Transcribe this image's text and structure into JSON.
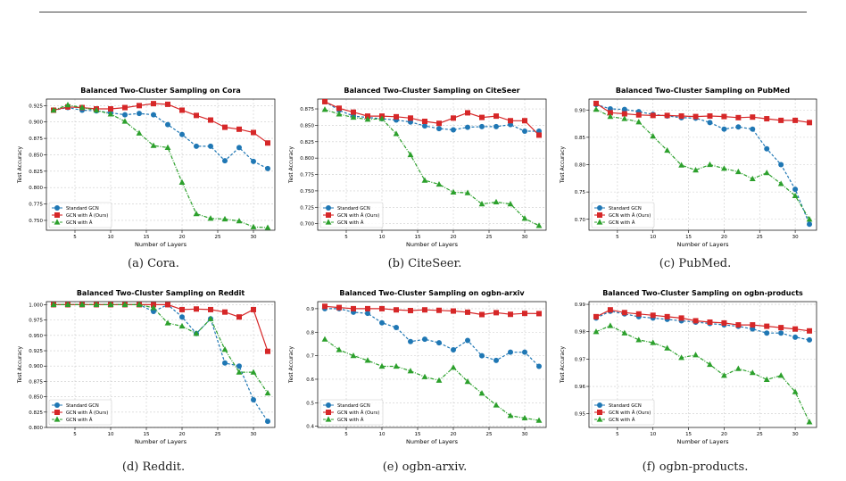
{
  "colors": {
    "standard": "#1f77b4",
    "ours": "#d62728",
    "ahat": "#2ca02c",
    "grid": "#cccccc"
  },
  "captions": [
    "(a) Cora.",
    "(b) CiteSeer.",
    "(c) PubMed.",
    "(d) Reddit.",
    "(e) ogbn-arxiv.",
    "(f) ogbn-products."
  ],
  "chart_data": [
    {
      "type": "line",
      "title": "Balanced Two-Cluster Sampling on Cora",
      "xlabel": "Number of Layers",
      "ylabel": "Test Accuracy",
      "xlim": [
        1,
        33
      ],
      "ylim": [
        0.735,
        0.935
      ],
      "xticks": [
        5,
        10,
        15,
        20,
        25,
        30
      ],
      "yticks": [
        0.75,
        0.775,
        0.8,
        0.825,
        0.85,
        0.875,
        0.9,
        0.925
      ],
      "ytick_labels": [
        "0.750",
        "0.775",
        "0.800",
        "0.825",
        "0.850",
        "0.875",
        "0.900",
        "0.925"
      ],
      "legend_loc": "lower-left",
      "grid": true,
      "x": [
        2,
        4,
        6,
        8,
        10,
        12,
        14,
        16,
        18,
        20,
        22,
        24,
        26,
        28,
        30,
        32
      ],
      "series": [
        {
          "name": "Standard GCN",
          "key": "standard",
          "marker": "circle",
          "dash": true,
          "values": [
            0.918,
            0.922,
            0.918,
            0.917,
            0.914,
            0.911,
            0.913,
            0.911,
            0.896,
            0.881,
            0.863,
            0.863,
            0.841,
            0.861,
            0.84,
            0.829
          ]
        },
        {
          "name": "GCN with Â (Ours)",
          "key": "ours",
          "marker": "square",
          "dash": false,
          "values": [
            0.918,
            0.923,
            0.922,
            0.92,
            0.92,
            0.922,
            0.925,
            0.928,
            0.927,
            0.918,
            0.91,
            0.903,
            0.892,
            0.889,
            0.884,
            0.868
          ]
        },
        {
          "name": "GCN with Ã",
          "key": "ahat",
          "marker": "triangle",
          "dash": true,
          "values": [
            0.918,
            0.926,
            0.922,
            0.918,
            0.912,
            0.901,
            0.883,
            0.864,
            0.861,
            0.808,
            0.76,
            0.753,
            0.752,
            0.749,
            0.74,
            0.739
          ]
        }
      ]
    },
    {
      "type": "line",
      "title": "Balanced Two-Cluster Sampling on CiteSeer",
      "xlabel": "Number of Layers",
      "ylabel": "Test Accuracy",
      "xlim": [
        1,
        33
      ],
      "ylim": [
        0.69,
        0.89
      ],
      "xticks": [
        5,
        10,
        15,
        20,
        25,
        30
      ],
      "yticks": [
        0.7,
        0.725,
        0.75,
        0.775,
        0.8,
        0.825,
        0.85,
        0.875
      ],
      "ytick_labels": [
        "0.700",
        "0.725",
        "0.750",
        "0.775",
        "0.800",
        "0.825",
        "0.850",
        "0.875"
      ],
      "legend_loc": "lower-left",
      "grid": true,
      "x": [
        2,
        4,
        6,
        8,
        10,
        12,
        14,
        16,
        18,
        20,
        22,
        24,
        26,
        28,
        30,
        32
      ],
      "series": [
        {
          "name": "Standard GCN",
          "key": "standard",
          "marker": "circle",
          "dash": true,
          "values": [
            0.886,
            0.873,
            0.864,
            0.862,
            0.86,
            0.858,
            0.855,
            0.849,
            0.845,
            0.843,
            0.847,
            0.848,
            0.848,
            0.851,
            0.841,
            0.841
          ]
        },
        {
          "name": "GCN with Â (Ours)",
          "key": "ours",
          "marker": "square",
          "dash": false,
          "values": [
            0.886,
            0.876,
            0.87,
            0.864,
            0.864,
            0.863,
            0.861,
            0.856,
            0.853,
            0.861,
            0.869,
            0.862,
            0.864,
            0.857,
            0.857,
            0.835
          ]
        },
        {
          "name": "GCN with Ã",
          "key": "ahat",
          "marker": "triangle",
          "dash": true,
          "values": [
            0.874,
            0.867,
            0.862,
            0.859,
            0.86,
            0.837,
            0.805,
            0.766,
            0.76,
            0.748,
            0.747,
            0.73,
            0.733,
            0.73,
            0.708,
            0.697
          ]
        }
      ]
    },
    {
      "type": "line",
      "title": "Balanced Two-Cluster Sampling on PubMed",
      "xlabel": "Number of Layers",
      "ylabel": "Test Accuracy",
      "xlim": [
        1,
        33
      ],
      "ylim": [
        0.68,
        0.92
      ],
      "xticks": [
        5,
        10,
        15,
        20,
        25,
        30
      ],
      "yticks": [
        0.7,
        0.75,
        0.8,
        0.85,
        0.9
      ],
      "ytick_labels": [
        "0.70",
        "0.75",
        "0.80",
        "0.85",
        "0.90"
      ],
      "legend_loc": "lower-left",
      "grid": true,
      "x": [
        2,
        4,
        6,
        8,
        10,
        12,
        14,
        16,
        18,
        20,
        22,
        24,
        26,
        28,
        30,
        32
      ],
      "series": [
        {
          "name": "Standard GCN",
          "key": "standard",
          "marker": "circle",
          "dash": true,
          "values": [
            0.91,
            0.902,
            0.901,
            0.897,
            0.892,
            0.889,
            0.886,
            0.885,
            0.877,
            0.865,
            0.869,
            0.865,
            0.829,
            0.8,
            0.755,
            0.691
          ]
        },
        {
          "name": "GCN with Â (Ours)",
          "key": "ours",
          "marker": "square",
          "dash": false,
          "values": [
            0.912,
            0.895,
            0.893,
            0.891,
            0.89,
            0.89,
            0.889,
            0.888,
            0.889,
            0.888,
            0.886,
            0.887,
            0.884,
            0.881,
            0.881,
            0.877
          ]
        },
        {
          "name": "GCN with Ã",
          "key": "ahat",
          "marker": "triangle",
          "dash": true,
          "values": [
            0.901,
            0.888,
            0.884,
            0.878,
            0.852,
            0.826,
            0.799,
            0.79,
            0.8,
            0.793,
            0.787,
            0.774,
            0.785,
            0.765,
            0.743,
            0.7
          ]
        }
      ]
    },
    {
      "type": "line",
      "title": "Balanced Two-Cluster Sampling on Reddit",
      "xlabel": "Number of Layers",
      "ylabel": "Test Accuracy",
      "xlim": [
        1,
        33
      ],
      "ylim": [
        0.8,
        1.005
      ],
      "xticks": [
        5,
        10,
        15,
        20,
        25,
        30
      ],
      "yticks": [
        0.8,
        0.825,
        0.85,
        0.875,
        0.9,
        0.925,
        0.95,
        0.975,
        1.0
      ],
      "ytick_labels": [
        "0.800",
        "0.825",
        "0.850",
        "0.875",
        "0.900",
        "0.925",
        "0.950",
        "0.975",
        "1.000"
      ],
      "legend_loc": "lower-left",
      "grid": true,
      "x": [
        2,
        4,
        6,
        8,
        10,
        12,
        14,
        16,
        18,
        20,
        22,
        24,
        26,
        28,
        30,
        32
      ],
      "series": [
        {
          "name": "Standard GCN",
          "key": "standard",
          "marker": "circle",
          "dash": true,
          "values": [
            1.0,
            1.0,
            1.0,
            1.0,
            1.0,
            1.0,
            1.0,
            0.989,
            1.0,
            0.98,
            0.953,
            0.977,
            0.905,
            0.9,
            0.845,
            0.81
          ]
        },
        {
          "name": "GCN with Â (Ours)",
          "key": "ours",
          "marker": "square",
          "dash": false,
          "values": [
            1.0,
            1.0,
            1.0,
            1.0,
            1.0,
            1.0,
            1.0,
            1.0,
            1.0,
            0.992,
            0.993,
            0.992,
            0.988,
            0.98,
            0.992,
            0.924
          ]
        },
        {
          "name": "GCN with Ã",
          "key": "ahat",
          "marker": "triangle",
          "dash": true,
          "values": [
            1.0,
            1.0,
            1.0,
            1.0,
            1.0,
            1.0,
            1.0,
            0.995,
            0.97,
            0.965,
            0.953,
            0.977,
            0.927,
            0.89,
            0.89,
            0.856
          ]
        }
      ]
    },
    {
      "type": "line",
      "title": "Balanced Two-Cluster Sampling on ogbn-arxiv",
      "xlabel": "Number of Layers",
      "ylabel": "Test Accuracy",
      "xlim": [
        1,
        33
      ],
      "ylim": [
        0.395,
        0.93
      ],
      "xticks": [
        5,
        10,
        15,
        20,
        25,
        30
      ],
      "yticks": [
        0.4,
        0.5,
        0.6,
        0.7,
        0.8,
        0.9
      ],
      "ytick_labels": [
        "0.4",
        "0.5",
        "0.6",
        "0.7",
        "0.8",
        "0.9"
      ],
      "legend_loc": "lower-left",
      "grid": true,
      "x": [
        2,
        4,
        6,
        8,
        10,
        12,
        14,
        16,
        18,
        20,
        22,
        24,
        26,
        28,
        30,
        32
      ],
      "series": [
        {
          "name": "Standard GCN",
          "key": "standard",
          "marker": "circle",
          "dash": true,
          "values": [
            0.9,
            0.9,
            0.885,
            0.88,
            0.84,
            0.82,
            0.76,
            0.77,
            0.755,
            0.725,
            0.765,
            0.7,
            0.68,
            0.715,
            0.715,
            0.655
          ]
        },
        {
          "name": "GCN with Â (Ours)",
          "key": "ours",
          "marker": "square",
          "dash": false,
          "values": [
            0.91,
            0.905,
            0.9,
            0.9,
            0.9,
            0.895,
            0.892,
            0.895,
            0.893,
            0.89,
            0.885,
            0.875,
            0.883,
            0.876,
            0.88,
            0.879
          ]
        },
        {
          "name": "GCN with Ã",
          "key": "ahat",
          "marker": "triangle",
          "dash": true,
          "values": [
            0.77,
            0.725,
            0.7,
            0.68,
            0.655,
            0.655,
            0.635,
            0.61,
            0.595,
            0.65,
            0.59,
            0.54,
            0.49,
            0.445,
            0.435,
            0.425
          ]
        }
      ]
    },
    {
      "type": "line",
      "title": "Balanced Two-Cluster Sampling on ogbn-products",
      "xlabel": "Number of Layers",
      "ylabel": "Test Accuracy",
      "xlim": [
        1,
        33
      ],
      "ylim": [
        0.945,
        0.991
      ],
      "xticks": [
        5,
        10,
        15,
        20,
        25,
        30
      ],
      "yticks": [
        0.95,
        0.96,
        0.97,
        0.98,
        0.99
      ],
      "ytick_labels": [
        "0.95",
        "0.96",
        "0.97",
        "0.98",
        "0.99"
      ],
      "legend_loc": "lower-left",
      "grid": true,
      "x": [
        2,
        4,
        6,
        8,
        10,
        12,
        14,
        16,
        18,
        20,
        22,
        24,
        26,
        28,
        30,
        32
      ],
      "series": [
        {
          "name": "Standard GCN",
          "key": "standard",
          "marker": "circle",
          "dash": true,
          "values": [
            0.985,
            0.9875,
            0.9865,
            0.9855,
            0.985,
            0.9845,
            0.984,
            0.9835,
            0.983,
            0.9825,
            0.982,
            0.981,
            0.9795,
            0.9795,
            0.978,
            0.977
          ]
        },
        {
          "name": "GCN with Â (Ours)",
          "key": "ours",
          "marker": "square",
          "dash": false,
          "values": [
            0.9855,
            0.988,
            0.987,
            0.9865,
            0.986,
            0.9855,
            0.985,
            0.984,
            0.9835,
            0.9832,
            0.9825,
            0.9825,
            0.982,
            0.9815,
            0.981,
            0.9803
          ]
        },
        {
          "name": "GCN with Ã",
          "key": "ahat",
          "marker": "triangle",
          "dash": true,
          "values": [
            0.98,
            0.9822,
            0.9795,
            0.977,
            0.976,
            0.974,
            0.9705,
            0.9715,
            0.968,
            0.964,
            0.9665,
            0.965,
            0.9625,
            0.964,
            0.958,
            0.947
          ]
        }
      ]
    }
  ]
}
